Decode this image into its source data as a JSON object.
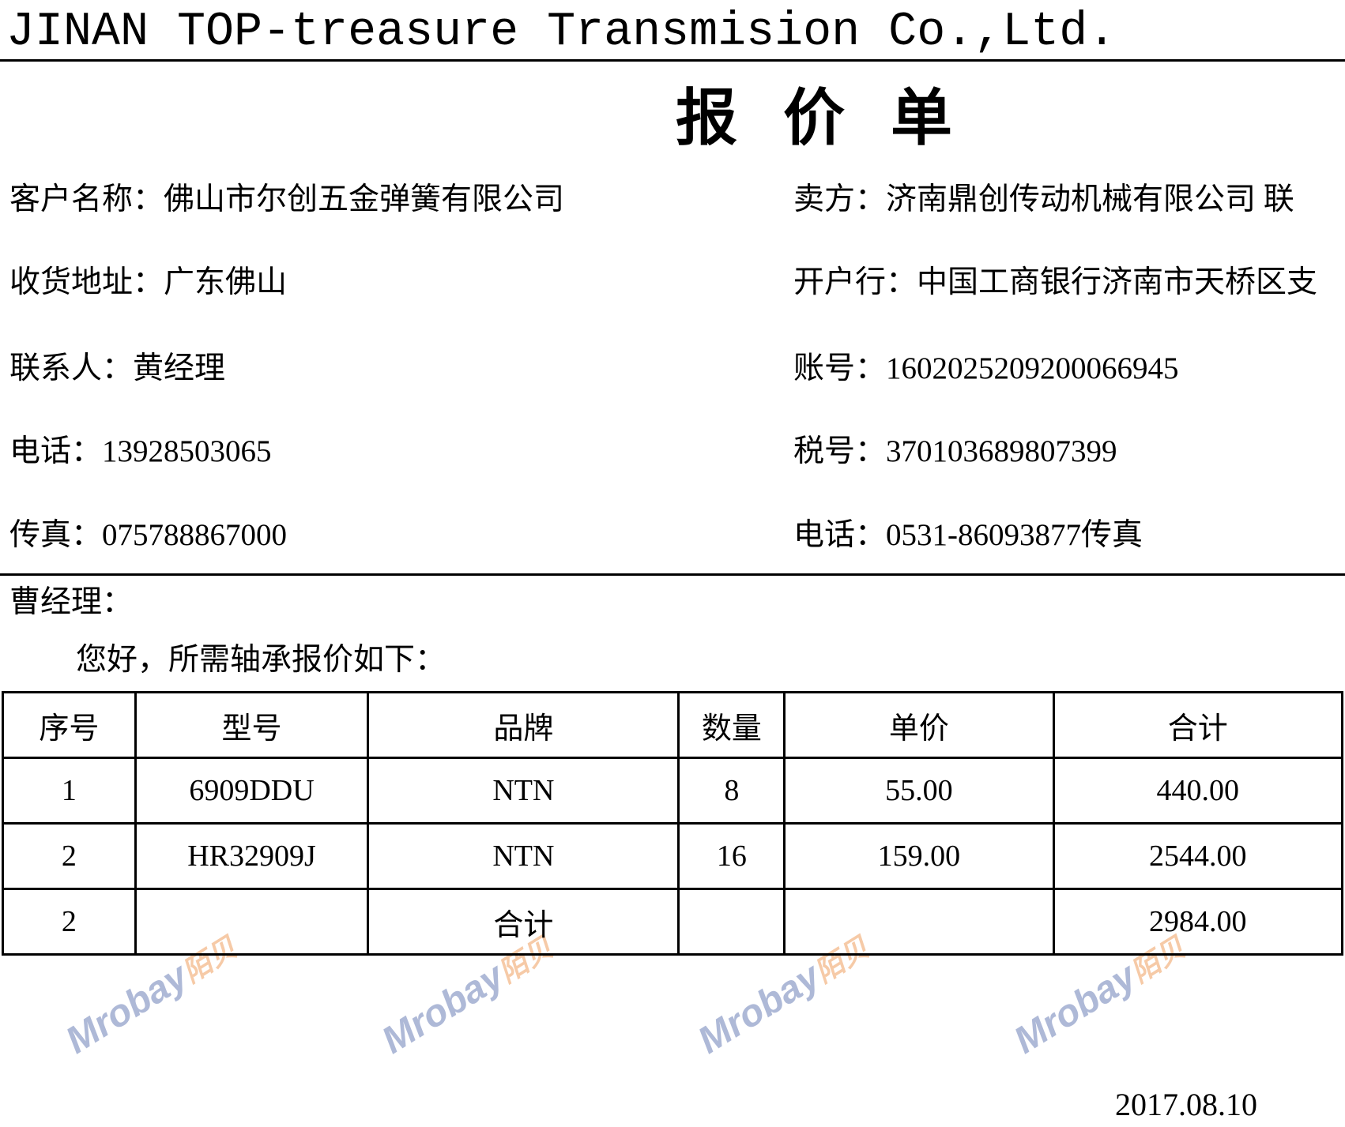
{
  "header": {
    "company": "JINAN TOP-treasure Transmision Co.,Ltd.",
    "title": "报价单"
  },
  "customer": {
    "name": "客户名称：佛山市尔创五金弹簧有限公司",
    "address": "收货地址：广东佛山",
    "contact": "联系人：黄经理",
    "phone": "电话：13928503065",
    "fax": "传真：075788867000"
  },
  "seller": {
    "name": "卖方：济南鼎创传动机械有限公司 联",
    "bank": "开户行：中国工商银行济南市天桥区支",
    "account": "账号：1602025209200066945",
    "tax_id": "税号：370103689807399",
    "phone": "电话：0531-86093877传真"
  },
  "greeting": {
    "salutation": "曹经理：",
    "body": "您好，所需轴承报价如下："
  },
  "table": {
    "headers": [
      "序号",
      "型号",
      "品牌",
      "数量",
      "单价",
      "合计"
    ],
    "rows": [
      [
        "1",
        "6909DDU",
        "NTN",
        "8",
        "55.00",
        "440.00"
      ],
      [
        "2",
        "HR32909J",
        "NTN",
        "16",
        "159.00",
        "2544.00"
      ],
      [
        "2",
        "",
        "合计",
        "",
        "",
        "2984.00"
      ]
    ]
  },
  "date": "2017.08.10",
  "watermark": {
    "brand": "Mrobay",
    "cn": "陌贝",
    "colors": {
      "brand": "#6d80b8",
      "cn": "#f0a060"
    }
  }
}
